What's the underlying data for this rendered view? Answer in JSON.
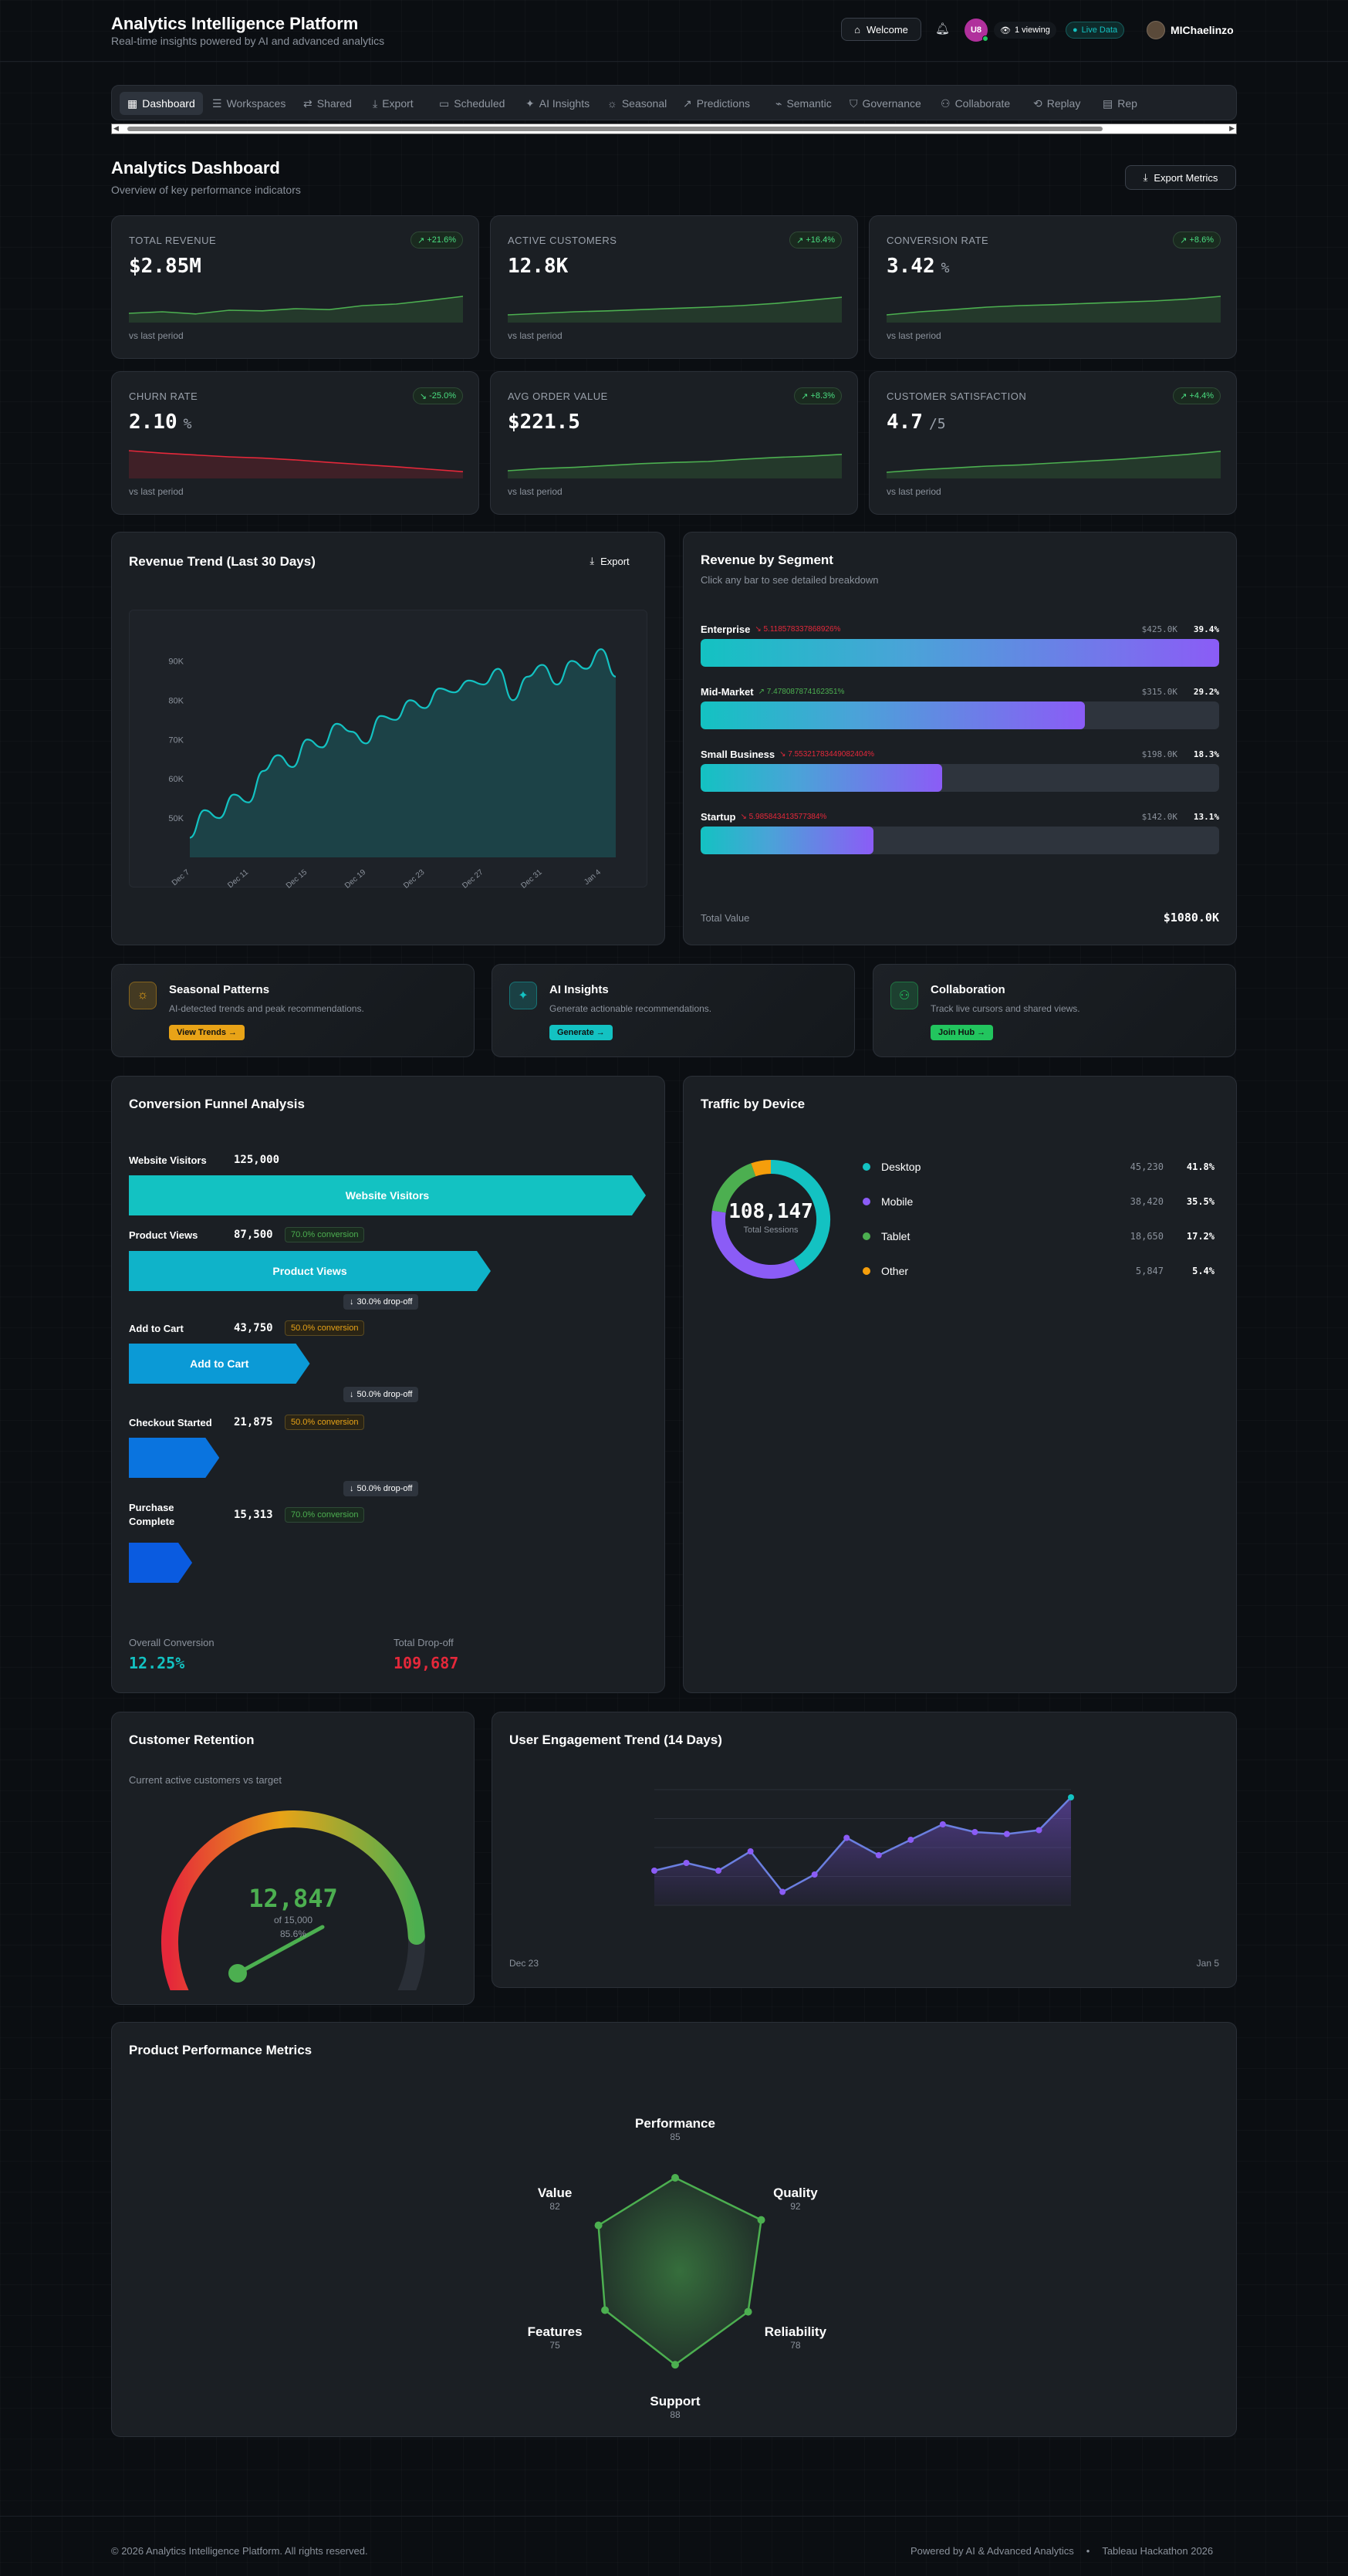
{
  "header": {
    "title": "Analytics Intelligence Platform",
    "subtitle": "Real-time insights powered by AI and advanced analytics",
    "welcome_label": "Welcome",
    "avatar_initials": "U8",
    "viewing_label": "1 viewing",
    "live_label": "Live Data",
    "user_name": "MIChaelinzo"
  },
  "nav": {
    "tabs": [
      {
        "label": "Dashboard",
        "icon": "dashboard-icon"
      },
      {
        "label": "Workspaces",
        "icon": "workspaces-icon"
      },
      {
        "label": "Shared",
        "icon": "share-icon"
      },
      {
        "label": "Export",
        "icon": "export-icon"
      },
      {
        "label": "Scheduled",
        "icon": "calendar-icon"
      },
      {
        "label": "AI Insights",
        "icon": "sparkle-icon"
      },
      {
        "label": "Seasonal",
        "icon": "sun-icon"
      },
      {
        "label": "Predictions",
        "icon": "trend-icon"
      },
      {
        "label": "Semantic",
        "icon": "semantic-icon"
      },
      {
        "label": "Governance",
        "icon": "shield-icon"
      },
      {
        "label": "Collaborate",
        "icon": "users-icon"
      },
      {
        "label": "Replay",
        "icon": "replay-icon"
      },
      {
        "label": "Rep",
        "icon": "report-icon"
      }
    ]
  },
  "page": {
    "title": "Analytics Dashboard",
    "subtitle": "Overview of key performance indicators",
    "export_label": "Export Metrics"
  },
  "kpis": [
    {
      "title": "TOTAL REVENUE",
      "value": "$2.85M",
      "unit": "",
      "badge": "+21.6%",
      "up": true,
      "foot": "vs last period",
      "trend": [
        0.3,
        0.35,
        0.28,
        0.4,
        0.38,
        0.45,
        0.42,
        0.55,
        0.6,
        0.72,
        0.85
      ]
    },
    {
      "title": "ACTIVE CUSTOMERS",
      "value": "12.8K",
      "unit": "",
      "badge": "+16.4%",
      "up": true,
      "foot": "vs last period",
      "trend": [
        0.25,
        0.3,
        0.35,
        0.38,
        0.42,
        0.46,
        0.5,
        0.55,
        0.62,
        0.72,
        0.82
      ]
    },
    {
      "title": "CONVERSION RATE",
      "value": "3.42",
      "unit": "%",
      "badge": "+8.6%",
      "up": true,
      "foot": "vs last period",
      "trend": [
        0.25,
        0.35,
        0.42,
        0.5,
        0.55,
        0.58,
        0.62,
        0.66,
        0.7,
        0.76,
        0.85
      ]
    },
    {
      "title": "CHURN RATE",
      "value": "2.10",
      "unit": "%",
      "badge": "-25.0%",
      "up": false,
      "foot": "vs last period",
      "trend": [
        0.9,
        0.82,
        0.76,
        0.7,
        0.66,
        0.6,
        0.52,
        0.45,
        0.38,
        0.3,
        0.22
      ]
    },
    {
      "title": "AVG ORDER VALUE",
      "value": "$221.5",
      "unit": "",
      "badge": "+8.3%",
      "up": true,
      "foot": "vs last period",
      "trend": [
        0.25,
        0.32,
        0.36,
        0.42,
        0.48,
        0.52,
        0.55,
        0.62,
        0.68,
        0.72,
        0.78
      ]
    },
    {
      "title": "CUSTOMER SATISFACTION",
      "value": "4.7",
      "unit": "/5",
      "badge": "+4.4%",
      "up": true,
      "foot": "vs last period",
      "trend": [
        0.2,
        0.28,
        0.34,
        0.4,
        0.44,
        0.5,
        0.56,
        0.62,
        0.7,
        0.78,
        0.88
      ]
    }
  ],
  "revenue_trend": {
    "title": "Revenue Trend (Last 30 Days)",
    "export_label": "Export",
    "chart_data": {
      "type": "area",
      "title": "Revenue Trend (Last 30 Days)",
      "x": [
        "Dec 7",
        "Dec 8",
        "Dec 9",
        "Dec 10",
        "Dec 11",
        "Dec 12",
        "Dec 13",
        "Dec 14",
        "Dec 15",
        "Dec 16",
        "Dec 17",
        "Dec 18",
        "Dec 19",
        "Dec 20",
        "Dec 21",
        "Dec 22",
        "Dec 23",
        "Dec 24",
        "Dec 25",
        "Dec 26",
        "Dec 27",
        "Dec 28",
        "Dec 29",
        "Dec 30",
        "Dec 31",
        "Jan 1",
        "Jan 2",
        "Jan 3",
        "Jan 4",
        "Jan 5"
      ],
      "values": [
        45000,
        52000,
        50000,
        56000,
        54000,
        62000,
        66000,
        63000,
        70000,
        68000,
        74000,
        72000,
        69000,
        76000,
        75000,
        80000,
        78000,
        83000,
        82000,
        85000,
        84000,
        88000,
        80000,
        86000,
        89000,
        84000,
        90000,
        88000,
        93000,
        86000
      ],
      "x_ticks": [
        "Dec 7",
        "Dec 11",
        "Dec 15",
        "Dec 19",
        "Dec 23",
        "Dec 27",
        "Dec 31",
        "Jan 4"
      ],
      "y_ticks": [
        "50K",
        "60K",
        "70K",
        "80K",
        "90K"
      ],
      "ylim": [
        40000,
        95000
      ]
    }
  },
  "segments": {
    "title": "Revenue by Segment",
    "subtitle": "Click any bar to see detailed breakdown",
    "total_label": "Total Value",
    "total_value": "$1080.0K",
    "items": [
      {
        "name": "Enterprise",
        "change": "5.118578337868926%",
        "up": false,
        "value": "$425.0K",
        "pct": "39.4%",
        "fill": 1.0
      },
      {
        "name": "Mid-Market",
        "change": "7.478087874162351%",
        "up": true,
        "value": "$315.0K",
        "pct": "29.2%",
        "fill": 0.741
      },
      {
        "name": "Small Business",
        "change": "7.55321783449082404%",
        "up": false,
        "value": "$198.0K",
        "pct": "18.3%",
        "fill": 0.466
      },
      {
        "name": "Startup",
        "change": "5.985843413577384%",
        "up": false,
        "value": "$142.0K",
        "pct": "13.1%",
        "fill": 0.334
      }
    ]
  },
  "feature_cards": [
    {
      "title": "Seasonal Patterns",
      "desc": "AI-detected trends and peak recommendations.",
      "button": "View Trends →",
      "color": "#e8a317",
      "icon": "sun-icon"
    },
    {
      "title": "AI Insights",
      "desc": "Generate actionable recommendations.",
      "button": "Generate →",
      "color": "#13c2c2",
      "icon": "sparkle-icon"
    },
    {
      "title": "Collaboration",
      "desc": "Track live cursors and shared views.",
      "button": "Join Hub →",
      "color": "#22c55e",
      "icon": "users-icon"
    }
  ],
  "funnel": {
    "title": "Conversion Funnel Analysis",
    "steps": [
      {
        "label": "Website Visitors",
        "value": "125,000",
        "conversion": "",
        "drop": "",
        "color": "#13c2c2",
        "width": 1.0
      },
      {
        "label": "Product Views",
        "value": "87,500",
        "conversion": "70.0% conversion",
        "drop": "30.0% drop-off",
        "color": "#0fb3c9",
        "width": 0.7
      },
      {
        "label": "Add to Cart",
        "value": "43,750",
        "conversion": "50.0% conversion",
        "drop": "50.0% drop-off",
        "color": "#0b9ad6",
        "width": 0.35
      },
      {
        "label": "Checkout Started",
        "value": "21,875",
        "conversion": "50.0% conversion",
        "drop": "50.0% drop-off",
        "color": "#0a74df",
        "width": 0.175
      },
      {
        "label": "Purchase Complete",
        "value": "15,313",
        "conversion": "70.0% conversion",
        "drop": "",
        "color": "#0a5be0",
        "width": 0.1225
      }
    ],
    "overall_label": "Overall Conversion",
    "overall_value": "12.25%",
    "dropoff_label": "Total Drop-off",
    "dropoff_value": "109,687"
  },
  "traffic": {
    "title": "Traffic by Device",
    "center_value": "108,147",
    "center_label": "Total Sessions",
    "chart_data": {
      "type": "pie",
      "categories": [
        "Desktop",
        "Mobile",
        "Tablet",
        "Other"
      ],
      "values": [
        45230,
        38420,
        18650,
        5847
      ],
      "percent": [
        "41.8%",
        "35.5%",
        "17.2%",
        "5.4%"
      ],
      "colors": [
        "#13c2c2",
        "#8b5cf6",
        "#4caf50",
        "#f59e0b"
      ]
    },
    "values_text": [
      "45,230",
      "38,420",
      "18,650",
      "5,847"
    ]
  },
  "retention": {
    "title": "Customer Retention",
    "subtitle": "Current active customers vs target",
    "value": "12,847",
    "target": "of 15,000",
    "percent": "85.6%",
    "fraction": 0.856
  },
  "engagement": {
    "title": "User Engagement Trend (14 Days)",
    "start_label": "Dec 23",
    "end_label": "Jan 5",
    "chart_data": {
      "type": "line",
      "x": [
        "Dec 23",
        "Dec 24",
        "Dec 25",
        "Dec 26",
        "Dec 27",
        "Dec 28",
        "Dec 29",
        "Dec 30",
        "Dec 31",
        "Jan 1",
        "Jan 2",
        "Jan 3",
        "Jan 4",
        "Jan 5"
      ],
      "values": [
        38,
        42,
        38,
        48,
        27,
        36,
        55,
        46,
        54,
        62,
        58,
        57,
        59,
        76
      ],
      "ylim": [
        20,
        80
      ]
    }
  },
  "product": {
    "title": "Product Performance Metrics",
    "chart_data": {
      "type": "radar",
      "categories": [
        "Performance",
        "Quality",
        "Reliability",
        "Support",
        "Features",
        "Value"
      ],
      "values": [
        85,
        92,
        78,
        88,
        75,
        82
      ],
      "max": 100
    }
  },
  "footer": {
    "copyright": "© 2026 Analytics Intelligence Platform. All rights reserved.",
    "powered": "Powered by AI & Advanced Analytics",
    "sep": "•",
    "event": "Tableau Hackathon 2026"
  }
}
